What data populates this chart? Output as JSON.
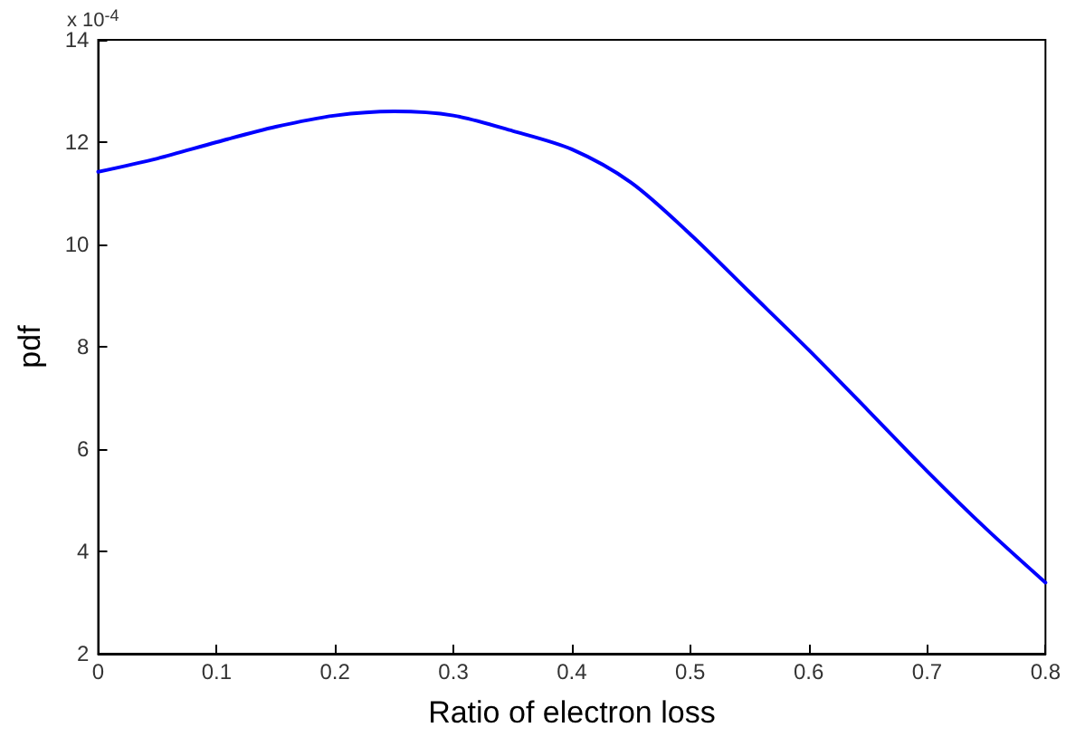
{
  "chart_data": {
    "type": "line",
    "xlabel": "Ratio of electron loss",
    "ylabel": "pdf",
    "annotations": [
      "x 10$^{-4}$"
    ],
    "x": [
      0,
      0.05,
      0.1,
      0.15,
      0.2,
      0.25,
      0.3,
      0.35,
      0.4,
      0.45,
      0.5,
      0.55,
      0.6,
      0.65,
      0.7,
      0.75,
      0.8
    ],
    "series": [
      {
        "color": "#0000ff",
        "values": [
          11.42,
          11.68,
          12.0,
          12.3,
          12.52,
          12.6,
          12.52,
          12.22,
          11.86,
          11.21,
          10.2,
          9.07,
          7.94,
          6.76,
          5.57,
          4.44,
          3.39
        ]
      }
    ],
    "xlim": [
      0,
      0.8
    ],
    "xticks": [
      0,
      0.1,
      0.2,
      0.3,
      0.4,
      0.5,
      0.6,
      0.7,
      0.8
    ],
    "ylim": [
      2,
      14
    ],
    "yticks": [
      2,
      4,
      6,
      8,
      10,
      12,
      14
    ],
    "grid": false,
    "marker": "none",
    "line_style": "solid"
  }
}
